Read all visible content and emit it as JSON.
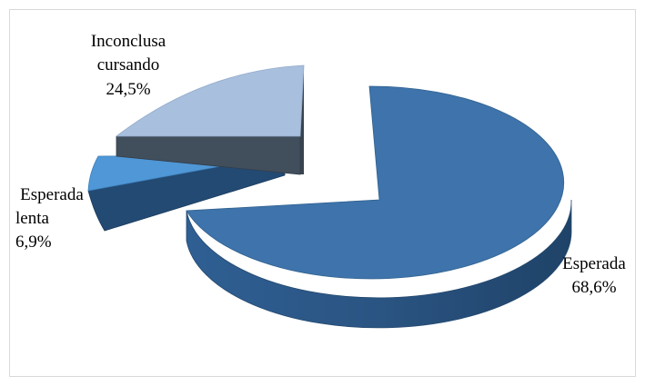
{
  "chart_data": {
    "type": "pie",
    "style": "3d-exploded",
    "slices": [
      {
        "label_lines": [
          "Esperada",
          "68,6%"
        ],
        "value": 68.6,
        "color": "#3e73ab"
      },
      {
        "label_lines": [
          "Esperada",
          "lenta",
          "6,9%"
        ],
        "value": 6.9,
        "color": "#4f97d6"
      },
      {
        "label_lines": [
          "Inconclusa",
          "cursando",
          "24,5%"
        ],
        "value": 24.5,
        "color": "#a8bfdd"
      }
    ],
    "colors": {
      "esperada_side": "#2b5480",
      "lenta_side": "#234a73",
      "inconclusa_side": "#414e5c"
    }
  }
}
